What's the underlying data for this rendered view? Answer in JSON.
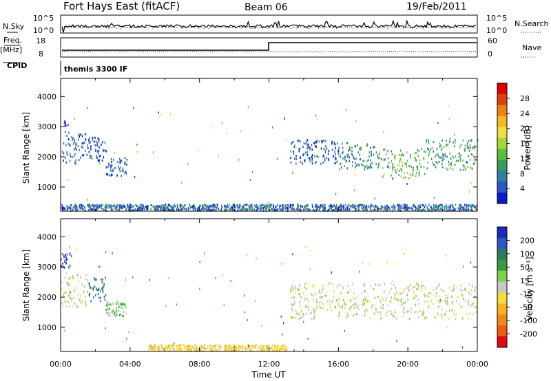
{
  "header": {
    "title": "Fort Hays East (fitACF)",
    "beam": "Beam 06",
    "date": "19/Feb/2011"
  },
  "panels": {
    "nsky_label": "N.Sky",
    "nsearch_label": "N.Search",
    "nsky_ticks": [
      "10^5",
      "10^0"
    ],
    "freq_label": "Freq.",
    "freq_unit": "[MHz]",
    "freq_ticks": [
      "18",
      "8"
    ],
    "nave_label": "Nave",
    "nave_ticks": [
      "60",
      "0"
    ],
    "cpid_label": "CPID",
    "cpid_value": "themis 3300 IF"
  },
  "colors": {
    "power": [
      "#0a1acc",
      "#2b55c8",
      "#2e7fa0",
      "#3a9a5a",
      "#5cbf3c",
      "#a8d63a",
      "#f0e040",
      "#f5b81e",
      "#f08010",
      "#e04010",
      "#e00000"
    ],
    "velocity": [
      "#1a2bb8",
      "#2e55c8",
      "#2d7b5a",
      "#3a9a40",
      "#7ad44a",
      "#c8c8c8",
      "#f5dc3c",
      "#f5b41e",
      "#f08a14",
      "#ee5a10",
      "#e00a0a"
    ]
  },
  "chart_data": [
    {
      "type": "heatmap",
      "name": "power",
      "xlabel": "Time UT",
      "ylabel": "Slant Range [km]",
      "xlim": [
        0,
        24
      ],
      "ylim": [
        200,
        4600
      ],
      "x_ticks": [
        "00:00",
        "04:00",
        "08:00",
        "12:00",
        "16:00",
        "20:00",
        "00:00"
      ],
      "y_ticks": [
        1000,
        2000,
        3000,
        4000
      ],
      "colorbar": {
        "label": "Power [dB]",
        "range": [
          0,
          32
        ],
        "ticks": [
          4,
          8,
          12,
          16,
          20,
          24,
          28
        ]
      },
      "regions": [
        {
          "t": [
            0.0,
            0.5
          ],
          "range": [
            1700,
            3300
          ],
          "value": 6
        },
        {
          "t": [
            0.5,
            1.6
          ],
          "range": [
            1800,
            2800
          ],
          "value": 5
        },
        {
          "t": [
            1.6,
            2.6
          ],
          "range": [
            1900,
            2700
          ],
          "value": 4
        },
        {
          "t": [
            2.6,
            3.8
          ],
          "range": [
            1400,
            2000
          ],
          "value": 5
        },
        {
          "t": [
            0.0,
            24.0
          ],
          "range": [
            250,
            450
          ],
          "value": 6
        },
        {
          "t": [
            13.2,
            16.0
          ],
          "range": [
            1800,
            2600
          ],
          "value": 5
        },
        {
          "t": [
            16.0,
            18.5
          ],
          "range": [
            1600,
            2500
          ],
          "value": 8
        },
        {
          "t": [
            18.5,
            21.0
          ],
          "range": [
            1300,
            2300
          ],
          "value": 12
        },
        {
          "t": [
            21.0,
            24.0
          ],
          "range": [
            1600,
            2600
          ],
          "value": 10
        }
      ]
    },
    {
      "type": "heatmap",
      "name": "velocity",
      "xlabel": "Time UT",
      "ylabel": "Slant Range [km]",
      "xlim": [
        0,
        24
      ],
      "ylim": [
        200,
        4600
      ],
      "x_ticks": [
        "00:00",
        "04:00",
        "08:00",
        "12:00",
        "16:00",
        "20:00",
        "00:00"
      ],
      "y_ticks": [
        1000,
        2000,
        3000,
        4000
      ],
      "colorbar": {
        "label": "Velocity [m s⁻¹]",
        "ticks": [
          "200",
          "100",
          "50",
          "15",
          "-15",
          "-50",
          "-100",
          "-200"
        ]
      },
      "regions": [
        {
          "t": [
            0.0,
            0.6
          ],
          "range": [
            3000,
            3500
          ],
          "value": 200
        },
        {
          "t": [
            0.0,
            1.6
          ],
          "range": [
            1700,
            2800
          ],
          "value": 0
        },
        {
          "t": [
            1.6,
            2.6
          ],
          "range": [
            1900,
            2700
          ],
          "value": 150
        },
        {
          "t": [
            2.6,
            3.8
          ],
          "range": [
            1400,
            1900
          ],
          "value": 40
        },
        {
          "t": [
            5.0,
            13.0
          ],
          "range": [
            250,
            450
          ],
          "value": -40
        },
        {
          "t": [
            13.2,
            24.0
          ],
          "range": [
            1300,
            2500
          ],
          "value": 0
        }
      ]
    }
  ]
}
